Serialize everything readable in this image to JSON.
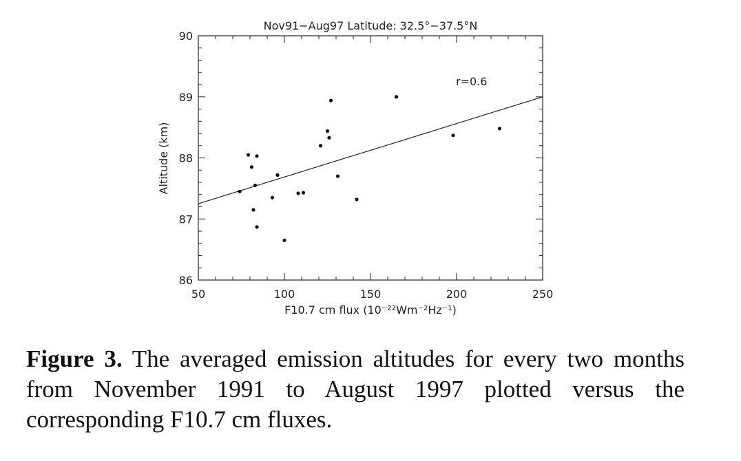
{
  "chart_data": {
    "type": "scatter",
    "title": "Nov91−Aug97 Latitude: 32.5°−37.5°N",
    "xlabel": "F10.7 cm flux (10⁻²²Wm⁻²Hz⁻¹)",
    "ylabel": "Altitude (km)",
    "xlim": [
      50,
      250
    ],
    "ylim": [
      86,
      90
    ],
    "xticks": [
      "50",
      "100",
      "150",
      "200",
      "250"
    ],
    "yticks": [
      "86",
      "87",
      "88",
      "89",
      "90"
    ],
    "annotation": "r=0.6",
    "fit_line": {
      "x": [
        50,
        250
      ],
      "y": [
        87.25,
        89.0
      ]
    },
    "points": [
      {
        "x": 74,
        "y": 87.45
      },
      {
        "x": 79,
        "y": 88.05
      },
      {
        "x": 81,
        "y": 87.85
      },
      {
        "x": 82,
        "y": 87.15
      },
      {
        "x": 83,
        "y": 87.55
      },
      {
        "x": 84,
        "y": 88.03
      },
      {
        "x": 84,
        "y": 86.87
      },
      {
        "x": 93,
        "y": 87.35
      },
      {
        "x": 96,
        "y": 87.72
      },
      {
        "x": 100,
        "y": 86.65
      },
      {
        "x": 108,
        "y": 87.42
      },
      {
        "x": 111,
        "y": 87.43
      },
      {
        "x": 121,
        "y": 88.2
      },
      {
        "x": 125,
        "y": 88.44
      },
      {
        "x": 126,
        "y": 88.33
      },
      {
        "x": 127,
        "y": 88.94
      },
      {
        "x": 131,
        "y": 87.7
      },
      {
        "x": 142,
        "y": 87.32
      },
      {
        "x": 165,
        "y": 89.0
      },
      {
        "x": 198,
        "y": 88.37
      },
      {
        "x": 225,
        "y": 88.48
      }
    ]
  },
  "caption": {
    "label": "Figure 3.",
    "text": "The averaged emission altitudes for every two months from November 1991 to August 1997 plotted versus the corresponding F10.7 cm fluxes."
  }
}
